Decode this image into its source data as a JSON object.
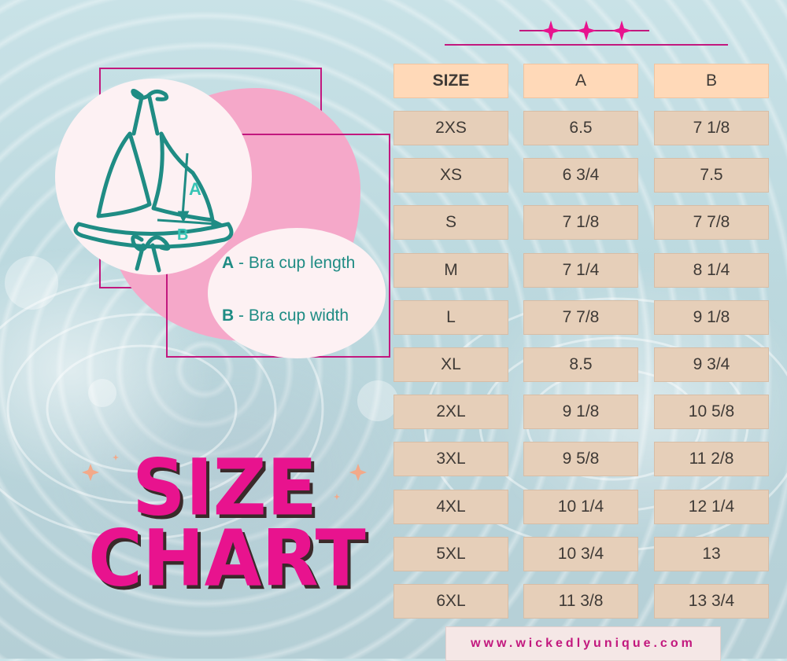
{
  "legend": {
    "a_letter": "A",
    "a_text": " - Bra cup length",
    "b_letter": "B",
    "b_text": " - Bra cup width"
  },
  "diagram_labels": {
    "a": "A",
    "b": "B"
  },
  "title": {
    "line1": "SIZE",
    "line2": "CHART"
  },
  "table": {
    "headers": [
      "SIZE",
      "A",
      "B"
    ],
    "rows": [
      [
        "2XS",
        "6.5",
        "7 1/8"
      ],
      [
        "XS",
        "6 3/4",
        "7.5"
      ],
      [
        "S",
        "7 1/8",
        "7 7/8"
      ],
      [
        "M",
        "7 1/4",
        "8 1/4"
      ],
      [
        "L",
        "7 7/8",
        "9 1/8"
      ],
      [
        "XL",
        "8.5",
        "9 3/4"
      ],
      [
        "2XL",
        "9 1/8",
        "10 5/8"
      ],
      [
        "3XL",
        "9 5/8",
        "11 2/8"
      ],
      [
        "4XL",
        "10 1/4",
        "12 1/4"
      ],
      [
        "5XL",
        "10 3/4",
        "13"
      ],
      [
        "6XL",
        "11 3/8",
        "13 3/4"
      ]
    ]
  },
  "footer": {
    "url": "www.wickedlyunique.com"
  },
  "colors": {
    "accent": "#e8138e",
    "frame": "#c2187e",
    "header_cell": "#ffd9b8",
    "body_cell": "#e6cfb9",
    "teal": "#1f8c84",
    "blob": "#f5a8c9"
  },
  "icons": [
    "sparkle-icon",
    "bikini-top-icon"
  ]
}
